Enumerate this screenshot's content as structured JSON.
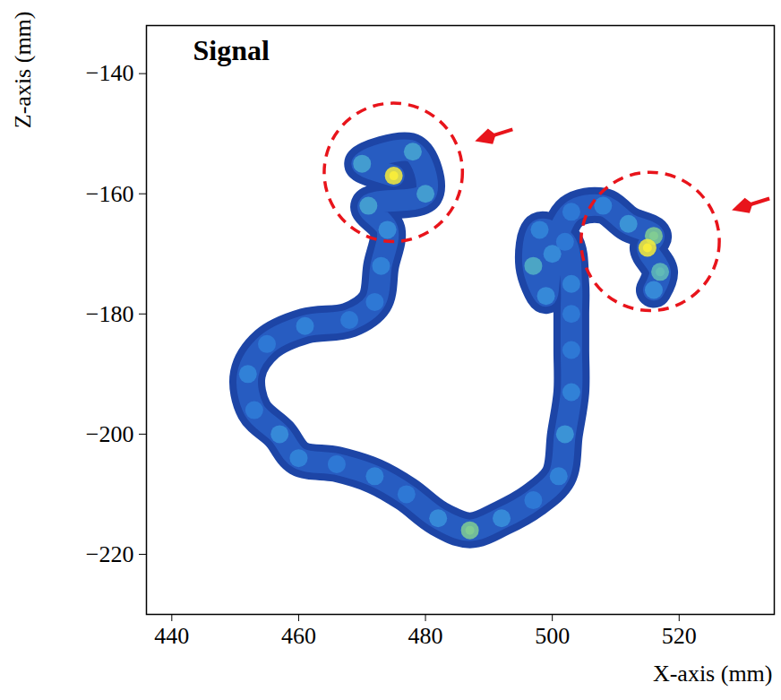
{
  "chart_data": {
    "type": "heatmap",
    "title": "Signal",
    "x_label": "X-axis (mm)",
    "y_label": "Z-axis (mm)",
    "xlim": [
      436,
      535
    ],
    "ylim": [
      -230,
      -132
    ],
    "xticks": [
      440,
      460,
      480,
      500,
      520
    ],
    "yticks": [
      -140,
      -160,
      -180,
      -200,
      -220
    ],
    "color_range": [
      0,
      1
    ],
    "track": {
      "x": [
        475,
        470,
        478,
        480,
        471,
        474,
        473,
        472,
        468,
        461,
        455,
        452,
        453,
        457,
        460,
        466,
        472,
        477,
        482,
        487,
        492,
        497,
        501,
        502,
        503,
        503,
        503,
        503,
        502,
        498,
        497,
        499,
        500,
        503,
        508,
        512,
        516,
        515,
        517,
        516
      ],
      "z": [
        -157,
        -155,
        -153,
        -160,
        -162,
        -166,
        -172,
        -178,
        -181,
        -182,
        -185,
        -190,
        -196,
        -200,
        -204,
        -205,
        -207,
        -210,
        -214,
        -216,
        -214,
        -211,
        -207,
        -200,
        -193,
        -186,
        -180,
        -175,
        -168,
        -166,
        -172,
        -177,
        -170,
        -163,
        -162,
        -165,
        -167,
        -169,
        -173,
        -176
      ],
      "values": [
        1.0,
        0.5,
        0.5,
        0.5,
        0.5,
        0.4,
        0.35,
        0.3,
        0.3,
        0.35,
        0.3,
        0.35,
        0.3,
        0.4,
        0.35,
        0.3,
        0.35,
        0.3,
        0.4,
        0.7,
        0.4,
        0.3,
        0.35,
        0.45,
        0.35,
        0.3,
        0.3,
        0.35,
        0.3,
        0.35,
        0.55,
        0.4,
        0.4,
        0.3,
        0.35,
        0.45,
        0.7,
        1.0,
        0.6,
        0.4
      ]
    },
    "highlights": [
      {
        "x": 475,
        "z": -156.5,
        "radius": 10.9
      },
      {
        "x": 515.5,
        "z": -168,
        "radius": 10.9
      }
    ]
  }
}
